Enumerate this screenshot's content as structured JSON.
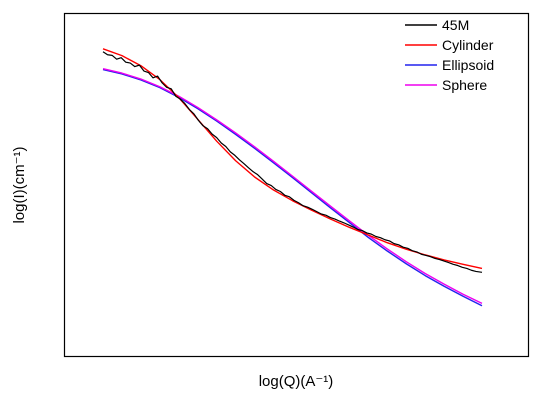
{
  "chart_data": {
    "type": "line",
    "title": "",
    "xlabel": "log(Q)(A⁻¹)",
    "ylabel": "log(I)(cm⁻¹)",
    "xlim": [
      0,
      1
    ],
    "ylim": [
      0,
      1
    ],
    "ticks_shown": false,
    "grid": false,
    "legend_position": "top-right",
    "series": [
      {
        "name": "45M",
        "color": "#000000",
        "x": [
          0.0,
          0.012,
          0.024,
          0.036,
          0.048,
          0.06,
          0.072,
          0.084,
          0.096,
          0.108,
          0.12,
          0.132,
          0.144,
          0.156,
          0.168,
          0.18,
          0.192,
          0.204,
          0.216,
          0.228,
          0.24,
          0.252,
          0.264,
          0.276,
          0.288,
          0.3,
          0.312,
          0.324,
          0.336,
          0.348,
          0.36,
          0.372,
          0.384,
          0.396,
          0.408,
          0.42,
          0.432,
          0.444,
          0.456,
          0.468,
          0.48,
          0.492,
          0.504,
          0.516,
          0.528,
          0.54,
          0.552,
          0.564,
          0.576,
          0.588,
          0.6,
          0.612,
          0.624,
          0.636,
          0.648,
          0.66,
          0.672,
          0.684,
          0.696,
          0.708,
          0.72,
          0.732,
          0.744,
          0.756,
          0.768,
          0.78,
          0.792,
          0.804,
          0.816,
          0.828,
          0.84,
          0.852,
          0.864,
          0.876,
          0.888,
          0.9,
          0.912,
          0.924,
          0.936,
          0.948,
          0.96,
          0.972,
          0.984,
          1.0
        ],
        "y": [
          0.95,
          0.94,
          0.938,
          0.925,
          0.93,
          0.915,
          0.912,
          0.9,
          0.905,
          0.885,
          0.88,
          0.862,
          0.868,
          0.845,
          0.83,
          0.825,
          0.8,
          0.79,
          0.775,
          0.755,
          0.74,
          0.718,
          0.7,
          0.69,
          0.672,
          0.66,
          0.642,
          0.63,
          0.612,
          0.6,
          0.585,
          0.572,
          0.558,
          0.545,
          0.535,
          0.52,
          0.505,
          0.498,
          0.485,
          0.478,
          0.465,
          0.46,
          0.448,
          0.44,
          0.43,
          0.425,
          0.418,
          0.41,
          0.402,
          0.398,
          0.39,
          0.385,
          0.378,
          0.372,
          0.365,
          0.358,
          0.35,
          0.346,
          0.338,
          0.334,
          0.326,
          0.322,
          0.315,
          0.311,
          0.302,
          0.298,
          0.29,
          0.286,
          0.278,
          0.274,
          0.266,
          0.262,
          0.258,
          0.252,
          0.248,
          0.243,
          0.238,
          0.232,
          0.228,
          0.222,
          0.218,
          0.212,
          0.208,
          0.205
        ]
      },
      {
        "name": "Cylinder",
        "color": "#ff0000",
        "x": [
          0.0,
          0.05,
          0.1,
          0.15,
          0.2,
          0.25,
          0.3,
          0.35,
          0.4,
          0.45,
          0.5,
          0.55,
          0.6,
          0.65,
          0.7,
          0.75,
          0.8,
          0.85,
          0.9,
          0.95,
          1.0
        ],
        "y": [
          0.96,
          0.937,
          0.903,
          0.856,
          0.795,
          0.722,
          0.648,
          0.582,
          0.527,
          0.483,
          0.447,
          0.415,
          0.385,
          0.357,
          0.331,
          0.305,
          0.283,
          0.264,
          0.247,
          0.232,
          0.218
        ]
      },
      {
        "name": "Ellipsoid",
        "color": "#2222ee",
        "x": [
          0.0,
          0.05,
          0.1,
          0.15,
          0.2,
          0.25,
          0.3,
          0.35,
          0.4,
          0.45,
          0.5,
          0.55,
          0.6,
          0.65,
          0.7,
          0.75,
          0.8,
          0.85,
          0.9,
          0.95,
          1.0
        ],
        "y": [
          0.89,
          0.875,
          0.855,
          0.829,
          0.796,
          0.758,
          0.716,
          0.671,
          0.624,
          0.575,
          0.525,
          0.474,
          0.423,
          0.373,
          0.323,
          0.277,
          0.234,
          0.194,
          0.158,
          0.124,
          0.092
        ]
      },
      {
        "name": "Sphere",
        "color": "#ee00ee",
        "x": [
          0.0,
          0.05,
          0.1,
          0.15,
          0.2,
          0.25,
          0.3,
          0.35,
          0.4,
          0.45,
          0.5,
          0.55,
          0.6,
          0.65,
          0.7,
          0.75,
          0.8,
          0.85,
          0.9,
          0.95,
          1.0
        ],
        "y": [
          0.893,
          0.878,
          0.858,
          0.832,
          0.8,
          0.762,
          0.72,
          0.676,
          0.629,
          0.58,
          0.53,
          0.479,
          0.429,
          0.379,
          0.33,
          0.284,
          0.241,
          0.201,
          0.165,
          0.131,
          0.1
        ]
      }
    ]
  }
}
